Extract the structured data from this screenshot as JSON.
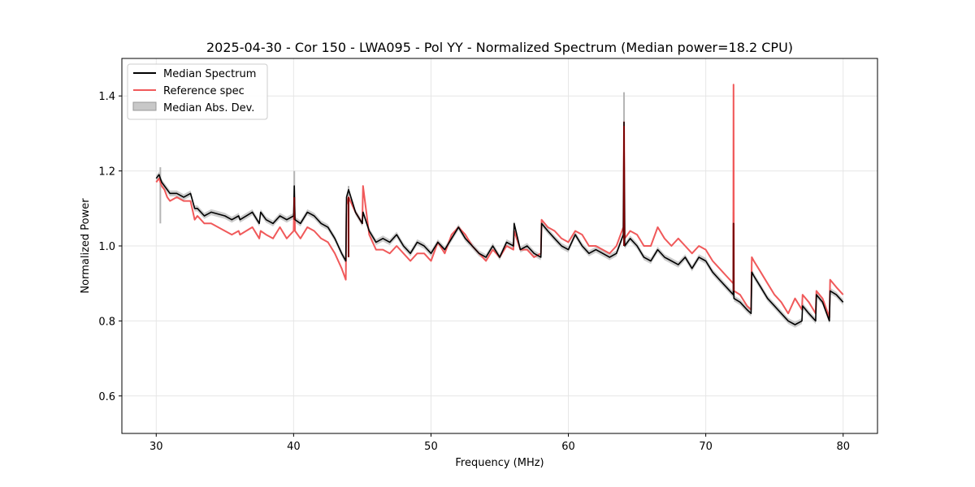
{
  "chart_data": {
    "type": "line",
    "title": "2025-04-30 - Cor 150 - LWA095 - Pol YY - Normalized Spectrum (Median power=18.2 CPU)",
    "xlabel": "Frequency (MHz)",
    "ylabel": "Normalized Power",
    "xlim": [
      27.5,
      82.5
    ],
    "ylim": [
      0.5,
      1.5
    ],
    "xticks": [
      30,
      40,
      50,
      60,
      70,
      80
    ],
    "xtick_labels": [
      "30",
      "40",
      "50",
      "60",
      "70",
      "80"
    ],
    "yticks": [
      0.6,
      0.8,
      1.0,
      1.2,
      1.4
    ],
    "ytick_labels": [
      "0.6",
      "0.8",
      "1.0",
      "1.2",
      "1.4"
    ],
    "grid": true,
    "legend_position": "top-left",
    "legend": [
      "Median Spectrum",
      "Reference spec",
      "Median Abs. Dev."
    ],
    "colors": {
      "median": "#000000",
      "reference": "#f0595a",
      "mad": "#c8c8c8",
      "overlap": "#7a0000"
    },
    "series": [
      {
        "name": "Median Spectrum",
        "x": [
          30.0,
          30.2,
          30.4,
          30.6,
          30.8,
          31.0,
          31.5,
          32.0,
          32.5,
          32.8,
          33.0,
          33.5,
          34.0,
          35.0,
          35.5,
          36.0,
          36.1,
          37.0,
          37.5,
          37.6,
          38.0,
          38.5,
          39.0,
          39.5,
          40.0,
          40.05,
          40.1,
          40.5,
          41.0,
          41.5,
          42.0,
          42.5,
          43.0,
          43.5,
          43.8,
          43.85,
          44.0,
          44.5,
          45.0,
          45.05,
          45.5,
          46.0,
          46.5,
          47.0,
          47.5,
          48.0,
          48.5,
          49.0,
          49.5,
          50.0,
          50.5,
          51.0,
          51.5,
          52.0,
          52.5,
          53.0,
          53.5,
          54.0,
          54.5,
          55.0,
          55.5,
          56.0,
          56.05,
          56.5,
          57.0,
          57.5,
          58.0,
          58.05,
          58.5,
          59.0,
          59.5,
          60.0,
          60.5,
          61.0,
          61.5,
          62.0,
          62.5,
          63.0,
          63.5,
          64.0,
          64.05,
          64.1,
          64.5,
          65.0,
          65.5,
          66.0,
          66.5,
          67.0,
          67.5,
          68.0,
          68.5,
          69.0,
          69.5,
          70.0,
          70.5,
          71.0,
          71.5,
          72.0,
          72.02,
          72.05,
          72.5,
          73.0,
          73.3,
          73.35,
          73.5,
          74.0,
          74.5,
          75.0,
          75.5,
          76.0,
          76.5,
          77.0,
          77.05,
          77.5,
          78.0,
          78.05,
          78.5,
          79.0,
          79.05,
          79.5,
          80.0
        ],
        "values": [
          1.18,
          1.19,
          1.17,
          1.16,
          1.15,
          1.14,
          1.14,
          1.13,
          1.14,
          1.1,
          1.1,
          1.08,
          1.09,
          1.08,
          1.07,
          1.08,
          1.07,
          1.09,
          1.06,
          1.09,
          1.07,
          1.06,
          1.08,
          1.07,
          1.08,
          1.16,
          1.07,
          1.06,
          1.09,
          1.08,
          1.06,
          1.05,
          1.02,
          0.98,
          0.96,
          1.13,
          1.15,
          1.09,
          1.06,
          1.09,
          1.04,
          1.01,
          1.02,
          1.01,
          1.03,
          1.0,
          0.98,
          1.01,
          1.0,
          0.98,
          1.01,
          0.99,
          1.02,
          1.05,
          1.02,
          1.0,
          0.98,
          0.97,
          1.0,
          0.97,
          1.01,
          1.0,
          1.06,
          0.99,
          1.0,
          0.98,
          0.97,
          1.06,
          1.04,
          1.02,
          1.0,
          0.99,
          1.03,
          1.0,
          0.98,
          0.99,
          0.98,
          0.97,
          0.98,
          1.03,
          1.33,
          1.0,
          1.02,
          1.0,
          0.97,
          0.96,
          0.99,
          0.97,
          0.96,
          0.95,
          0.97,
          0.94,
          0.97,
          0.96,
          0.93,
          0.91,
          0.89,
          0.87,
          1.06,
          0.86,
          0.85,
          0.83,
          0.82,
          0.93,
          0.92,
          0.89,
          0.86,
          0.84,
          0.82,
          0.8,
          0.79,
          0.8,
          0.84,
          0.82,
          0.8,
          0.87,
          0.85,
          0.8,
          0.88,
          0.87,
          0.85
        ]
      },
      {
        "name": "Reference spec",
        "x": [
          30.0,
          30.2,
          30.4,
          30.6,
          30.8,
          31.0,
          31.5,
          32.0,
          32.5,
          32.8,
          33.0,
          33.5,
          34.0,
          35.0,
          35.5,
          36.0,
          36.1,
          37.0,
          37.5,
          37.6,
          38.0,
          38.5,
          39.0,
          39.5,
          40.0,
          40.05,
          40.1,
          40.5,
          41.0,
          41.5,
          42.0,
          42.5,
          43.0,
          43.5,
          43.8,
          43.85,
          44.0,
          44.5,
          45.0,
          45.05,
          45.5,
          46.0,
          46.5,
          47.0,
          47.5,
          48.0,
          48.5,
          49.0,
          49.5,
          50.0,
          50.5,
          51.0,
          51.5,
          52.0,
          52.5,
          53.0,
          53.5,
          54.0,
          54.5,
          55.0,
          55.5,
          56.0,
          56.05,
          56.5,
          57.0,
          57.5,
          58.0,
          58.05,
          58.5,
          59.0,
          59.5,
          60.0,
          60.5,
          61.0,
          61.5,
          62.0,
          62.5,
          63.0,
          63.5,
          64.0,
          64.05,
          64.1,
          64.5,
          65.0,
          65.5,
          66.0,
          66.5,
          67.0,
          67.5,
          68.0,
          68.5,
          69.0,
          69.5,
          70.0,
          70.5,
          71.0,
          71.5,
          72.0,
          72.02,
          72.05,
          72.5,
          73.0,
          73.3,
          73.35,
          73.5,
          74.0,
          74.5,
          75.0,
          75.5,
          76.0,
          76.5,
          77.0,
          77.05,
          77.5,
          78.0,
          78.05,
          78.5,
          79.0,
          79.05,
          79.5,
          80.0
        ],
        "values": [
          1.17,
          1.18,
          1.16,
          1.15,
          1.13,
          1.12,
          1.13,
          1.12,
          1.12,
          1.07,
          1.08,
          1.06,
          1.06,
          1.04,
          1.03,
          1.04,
          1.03,
          1.05,
          1.02,
          1.04,
          1.03,
          1.02,
          1.05,
          1.02,
          1.04,
          1.13,
          1.04,
          1.02,
          1.05,
          1.04,
          1.02,
          1.01,
          0.98,
          0.94,
          0.91,
          1.11,
          1.13,
          1.09,
          1.06,
          1.16,
          1.03,
          0.99,
          0.99,
          0.98,
          1.0,
          0.98,
          0.96,
          0.98,
          0.98,
          0.96,
          1.01,
          0.98,
          1.03,
          1.05,
          1.03,
          1.0,
          0.98,
          0.96,
          0.99,
          0.97,
          1.0,
          0.99,
          1.04,
          0.99,
          0.99,
          0.97,
          0.98,
          1.07,
          1.05,
          1.04,
          1.02,
          1.01,
          1.04,
          1.03,
          1.0,
          1.0,
          0.99,
          0.98,
          1.0,
          1.05,
          1.33,
          1.02,
          1.04,
          1.03,
          1.0,
          1.0,
          1.05,
          1.02,
          1.0,
          1.02,
          1.0,
          0.98,
          1.0,
          0.99,
          0.96,
          0.94,
          0.92,
          0.9,
          1.43,
          0.88,
          0.87,
          0.84,
          0.83,
          0.97,
          0.96,
          0.93,
          0.9,
          0.87,
          0.85,
          0.82,
          0.86,
          0.83,
          0.87,
          0.85,
          0.82,
          0.88,
          0.86,
          0.81,
          0.91,
          0.89,
          0.87
        ]
      }
    ],
    "mad_band": {
      "name": "Median Abs. Dev.",
      "half_width": 0.008,
      "spikes": [
        {
          "x": 30.3,
          "top": 1.21
        },
        {
          "x": 40.05,
          "top": 1.2
        },
        {
          "x": 44.0,
          "top": 1.16
        },
        {
          "x": 64.05,
          "top": 1.41
        },
        {
          "x": 72.02,
          "top": 1.09
        }
      ]
    }
  }
}
